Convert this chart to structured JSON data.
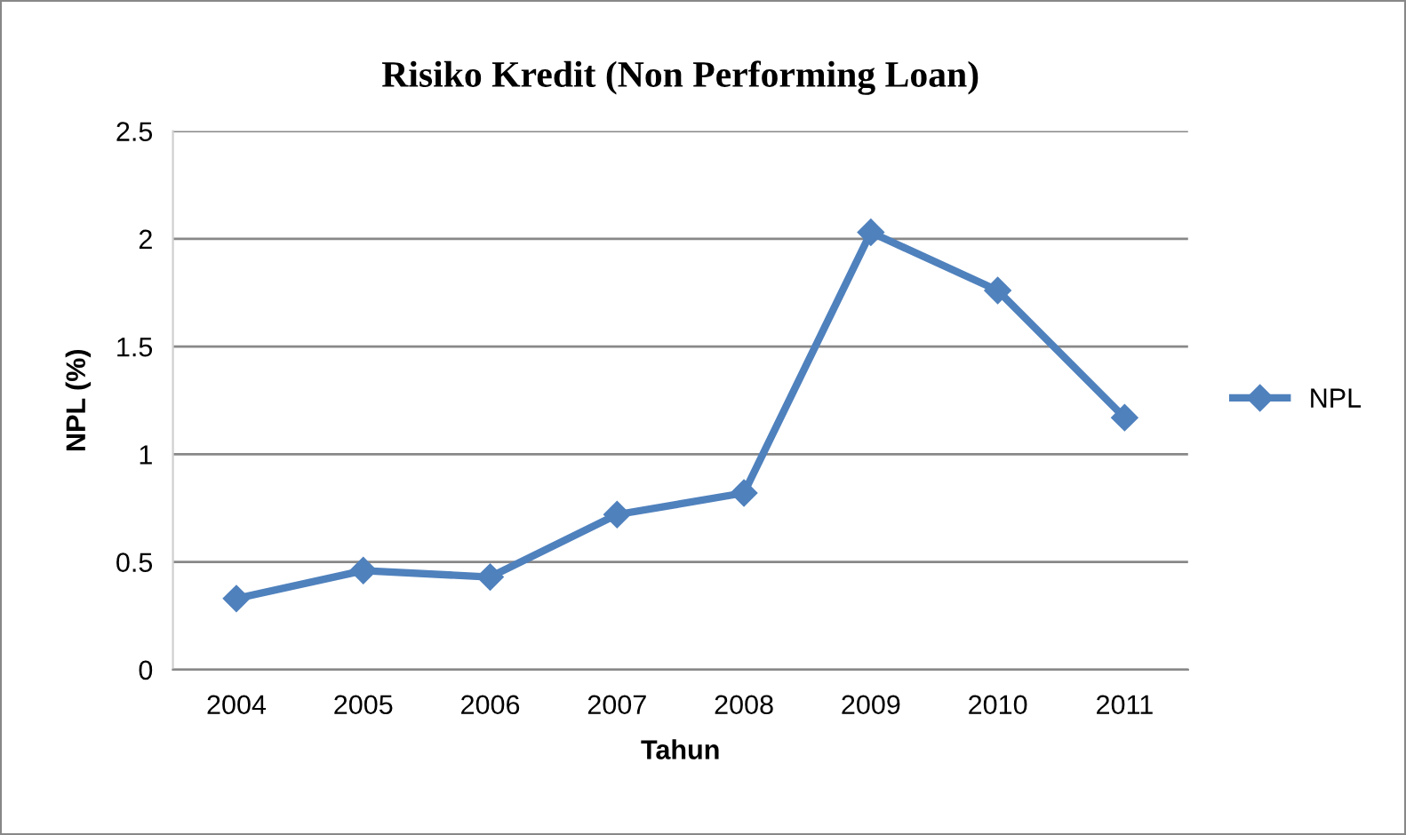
{
  "chart_data": {
    "type": "line",
    "title": "Risiko Kredit (Non Performing Loan)",
    "xlabel": "Tahun",
    "ylabel": "NPL (%)",
    "categories": [
      "2004",
      "2005",
      "2006",
      "2007",
      "2008",
      "2009",
      "2010",
      "2011"
    ],
    "series": [
      {
        "name": "NPL",
        "color": "#4f81bd",
        "values": [
          0.33,
          0.46,
          0.43,
          0.72,
          0.82,
          2.03,
          1.76,
          1.17
        ]
      }
    ],
    "ylim": [
      0,
      2.5
    ],
    "yticks": [
      {
        "value": 0,
        "label": "0"
      },
      0.5,
      {
        "value": 1,
        "label": "1"
      },
      1.5,
      {
        "value": 2,
        "label": "2"
      },
      2.5
    ],
    "grid": "y",
    "legend": "right",
    "marker": "diamond",
    "line_style": "solid"
  }
}
